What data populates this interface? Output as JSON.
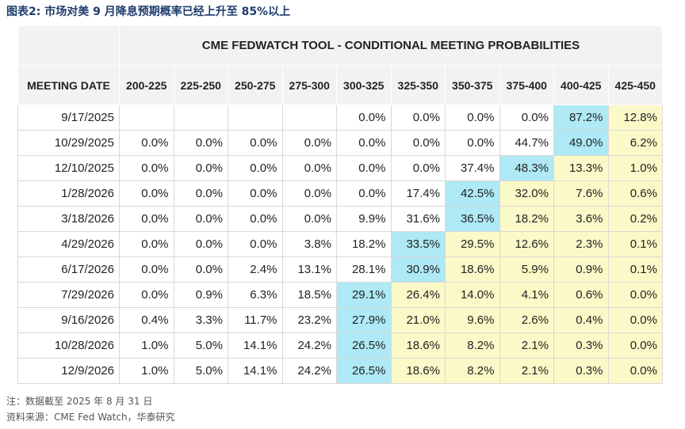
{
  "header": {
    "title": "图表2:  市场对美 9 月降息预期概率已经上升至 85%以上"
  },
  "table": {
    "title": "CME FEDWATCH TOOL - CONDITIONAL MEETING PROBABILITIES",
    "columns": [
      "MEETING DATE",
      "200-225",
      "225-250",
      "250-275",
      "275-300",
      "300-325",
      "325-350",
      "350-375",
      "375-400",
      "400-425",
      "425-450"
    ],
    "rows": [
      {
        "date": "9/17/2025",
        "cells": [
          null,
          null,
          null,
          null,
          "0.0%",
          "0.0%",
          "0.0%",
          "0.0%",
          "87.2%",
          "12.8%"
        ]
      },
      {
        "date": "10/29/2025",
        "cells": [
          "0.0%",
          "0.0%",
          "0.0%",
          "0.0%",
          "0.0%",
          "0.0%",
          "0.0%",
          "44.7%",
          "49.0%",
          "6.2%"
        ]
      },
      {
        "date": "12/10/2025",
        "cells": [
          "0.0%",
          "0.0%",
          "0.0%",
          "0.0%",
          "0.0%",
          "0.0%",
          "37.4%",
          "48.3%",
          "13.3%",
          "1.0%"
        ]
      },
      {
        "date": "1/28/2026",
        "cells": [
          "0.0%",
          "0.0%",
          "0.0%",
          "0.0%",
          "0.0%",
          "17.4%",
          "42.5%",
          "32.0%",
          "7.6%",
          "0.6%"
        ]
      },
      {
        "date": "3/18/2026",
        "cells": [
          "0.0%",
          "0.0%",
          "0.0%",
          "0.0%",
          "9.9%",
          "31.6%",
          "36.5%",
          "18.2%",
          "3.6%",
          "0.2%"
        ]
      },
      {
        "date": "4/29/2026",
        "cells": [
          "0.0%",
          "0.0%",
          "0.0%",
          "3.8%",
          "18.2%",
          "33.5%",
          "29.5%",
          "12.6%",
          "2.3%",
          "0.1%"
        ]
      },
      {
        "date": "6/17/2026",
        "cells": [
          "0.0%",
          "0.0%",
          "2.4%",
          "13.1%",
          "28.1%",
          "30.9%",
          "18.6%",
          "5.9%",
          "0.9%",
          "0.1%"
        ]
      },
      {
        "date": "7/29/2026",
        "cells": [
          "0.0%",
          "0.9%",
          "6.3%",
          "18.5%",
          "29.1%",
          "26.4%",
          "14.0%",
          "4.1%",
          "0.6%",
          "0.0%"
        ]
      },
      {
        "date": "9/16/2026",
        "cells": [
          "0.4%",
          "3.3%",
          "11.7%",
          "23.2%",
          "27.9%",
          "21.0%",
          "9.6%",
          "2.6%",
          "0.4%",
          "0.0%"
        ]
      },
      {
        "date": "10/28/2026",
        "cells": [
          "1.0%",
          "5.0%",
          "14.1%",
          "24.2%",
          "26.5%",
          "18.6%",
          "8.2%",
          "2.1%",
          "0.3%",
          "0.0%"
        ]
      },
      {
        "date": "12/9/2026",
        "cells": [
          "1.0%",
          "5.0%",
          "14.1%",
          "24.2%",
          "26.5%",
          "18.6%",
          "8.2%",
          "2.1%",
          "0.3%",
          "0.0%"
        ]
      }
    ]
  },
  "notes": [
    "注：数据截至 2025 年 8 月 31 日",
    "资料来源：CME Fed Watch，华泰研究"
  ]
}
